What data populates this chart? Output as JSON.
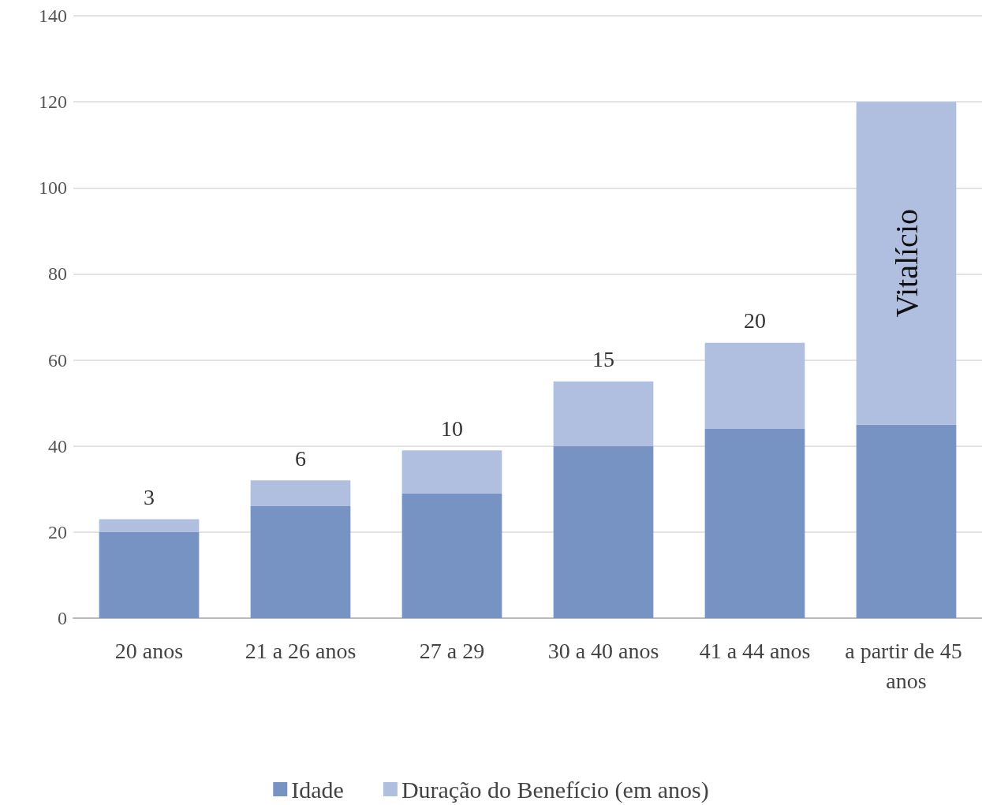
{
  "chart_data": {
    "type": "bar",
    "stacked": true,
    "categories": [
      "20 anos",
      "21 a 26 anos",
      "27 a 29",
      "30 a 40 anos",
      "41 a 44 anos",
      "a partir de 45 anos"
    ],
    "series": [
      {
        "name": "Idade",
        "color": "#7793c3",
        "values": [
          20,
          26,
          29,
          40,
          44,
          45
        ]
      },
      {
        "name": "Duração do Benefício (em anos)",
        "color": "#b0bfe0",
        "values": [
          3,
          6,
          10,
          15,
          20,
          75
        ],
        "value_labels": [
          "3",
          "6",
          "10",
          "15",
          "20",
          "Vitalício"
        ]
      }
    ],
    "ylim": [
      0,
      140
    ],
    "yticks": [
      0,
      20,
      40,
      60,
      80,
      100,
      120,
      140
    ],
    "grid": "y",
    "legend": "bottom"
  }
}
